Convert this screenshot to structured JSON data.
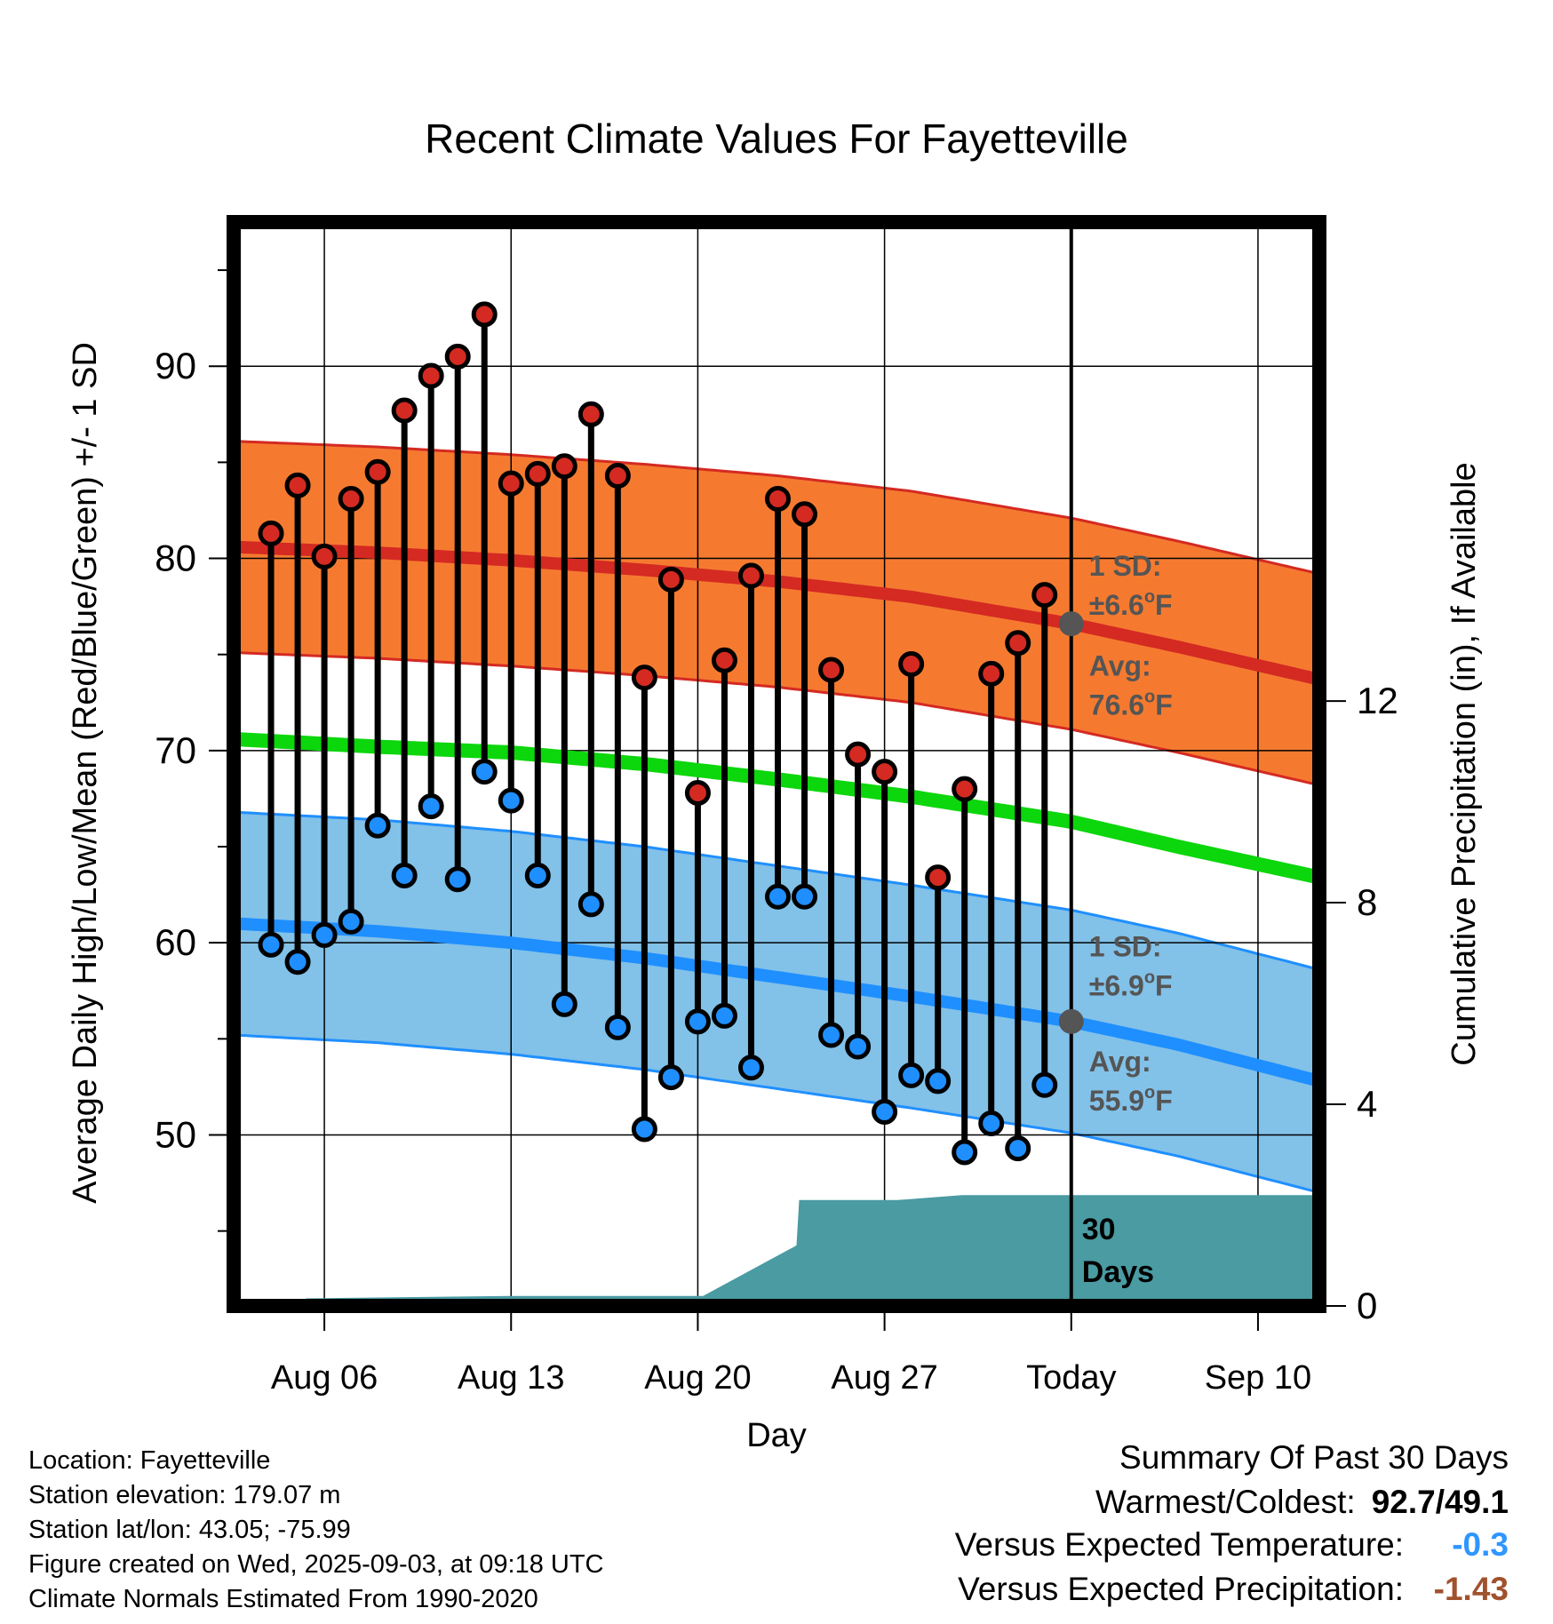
{
  "chart_data": {
    "type": "line",
    "title": "Recent Climate Values For Fayetteville",
    "xlabel": "Day",
    "ylabel": "Average Daily High/Low/Mean (Red/Blue/Green) +/- 1 SD",
    "y2label": "Cumulative Precipitation (in), If Available",
    "x_ticks": [
      {
        "day": 3,
        "label": "Aug 06"
      },
      {
        "day": 10,
        "label": "Aug 13"
      },
      {
        "day": 17,
        "label": "Aug 20"
      },
      {
        "day": 24,
        "label": "Aug 27"
      },
      {
        "day": 31,
        "label": "Today"
      },
      {
        "day": 38,
        "label": "Sep 10"
      }
    ],
    "y_ticks": [
      50,
      60,
      70,
      80,
      90
    ],
    "y2_ticks": [
      0,
      4,
      8,
      12
    ],
    "xlim": [
      -0.4,
      40.3
    ],
    "ylim": [
      41.1,
      97.5
    ],
    "y2lim": [
      0,
      21.5
    ],
    "grid": true,
    "today_day": 31,
    "normal_days": [
      -0.4,
      5,
      10,
      15,
      20,
      25,
      31,
      35,
      40.3
    ],
    "normal_high": [
      80.6,
      80.3,
      79.9,
      79.4,
      78.8,
      78.0,
      76.6,
      75.4,
      73.7
    ],
    "normal_high_sd": 5.5,
    "normal_low": [
      61.0,
      60.6,
      60.0,
      59.2,
      58.2,
      57.2,
      55.9,
      54.7,
      52.8
    ],
    "normal_low_sd": 5.8,
    "normal_mean": [
      70.6,
      70.2,
      69.9,
      69.3,
      68.5,
      67.6,
      66.3,
      65.0,
      63.4
    ],
    "days": [
      1,
      2,
      3,
      4,
      5,
      6,
      7,
      8,
      9,
      10,
      11,
      12,
      13,
      14,
      15,
      16,
      17,
      18,
      19,
      20,
      21,
      22,
      23,
      24,
      25,
      26,
      27,
      28,
      29,
      30
    ],
    "highs": [
      81.3,
      83.8,
      80.1,
      83.1,
      84.5,
      87.7,
      89.5,
      90.5,
      92.7,
      83.9,
      84.4,
      84.8,
      87.5,
      84.3,
      73.8,
      78.9,
      67.8,
      74.7,
      79.1,
      83.1,
      82.3,
      74.2,
      69.8,
      68.9,
      74.5,
      63.4,
      68.0,
      74.0,
      75.6,
      78.1
    ],
    "lows": [
      59.9,
      59.0,
      60.4,
      61.1,
      66.1,
      63.5,
      67.1,
      63.3,
      68.9,
      67.4,
      63.5,
      56.8,
      62.0,
      55.6,
      50.3,
      53.0,
      55.9,
      56.2,
      53.5,
      62.4,
      62.4,
      55.2,
      54.6,
      51.2,
      53.1,
      52.8,
      49.1,
      50.6,
      49.3,
      52.6
    ],
    "precip_days": [
      2.3,
      2.3,
      10,
      13,
      13.1,
      14.3,
      17.2,
      20.7,
      20.8,
      23.6,
      24.5,
      26.9,
      27.3,
      40.3
    ],
    "precip_values": [
      0,
      0.15,
      0.2,
      0.2,
      0.2,
      0.2,
      0.2,
      1.2,
      2.1,
      2.1,
      2.1,
      2.2,
      2.2,
      2.2
    ],
    "annotations": {
      "high_sd_label": "1 SD:",
      "high_sd_value": "±6.6",
      "high_avg_label": "Avg:",
      "high_avg_value": "76.6",
      "low_sd_label": "1 SD:",
      "low_sd_value": "±6.9",
      "low_avg_label": "Avg:",
      "low_avg_value": "55.9",
      "deg_unit": "o",
      "temp_unit": "F",
      "period_num": "30",
      "period_word": "Days"
    },
    "colors": {
      "high": "#d42a22",
      "high_band": "#f57a30",
      "low": "#1f8fff",
      "low_band": "#82c1e8",
      "mean": "#0cd60c",
      "precip": "#4a9ba2",
      "annotation": "#555555"
    }
  },
  "location": {
    "location_line": "Location: Fayetteville",
    "elevation_line": "Station elevation: 179.07 m",
    "latlon_line": "Station lat/lon: 43.05; -75.99",
    "created_line": "Figure created on Wed, 2025-09-03, at 09:18 UTC",
    "normals_line": "Climate Normals Estimated From 1990-2020"
  },
  "summary": {
    "title": "Summary Of Past 30 Days",
    "warmest_coldest_label": "Warmest/Coldest:",
    "warmest_coldest_value": "92.7/49.1",
    "temp_label": "Versus Expected Temperature:",
    "temp_value": "-0.3",
    "temp_color": "#2f96ff",
    "precip_label": "Versus Expected Precipitation:",
    "precip_value": "-1.43",
    "precip_color": "#a0522d"
  }
}
